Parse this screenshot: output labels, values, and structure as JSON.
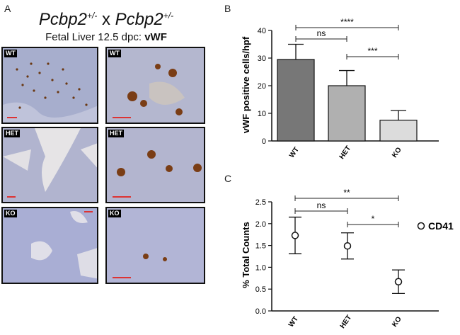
{
  "panelA": {
    "letter": "A",
    "title_gene_1": "Pcbp2",
    "title_sup_1": "+/-",
    "title_x": "x",
    "title_gene_2": "Pcbp2",
    "title_sup_2": "+/-",
    "subtitle_prefix": "Fetal Liver 12.5 dpc:",
    "subtitle_marker": "vWF",
    "rows": [
      {
        "left_tag": "WT",
        "right_tag": "WT",
        "tint": "#a7aecd",
        "stain": "#6a3812"
      },
      {
        "left_tag": "HET",
        "right_tag": "HET",
        "tint": "#b1b4cf",
        "stain": "#7a3d15"
      },
      {
        "left_tag": "KO",
        "right_tag": "KO",
        "tint": "#a9aed4",
        "stain": "#7a3d15"
      }
    ]
  },
  "panelB": {
    "letter": "B",
    "colors": [
      "#777777",
      "#b0b0b0",
      "#dcdcdc"
    ],
    "sig": [
      {
        "label": "****"
      },
      {
        "label": "ns"
      },
      {
        "label": "***"
      }
    ]
  },
  "panelC": {
    "letter": "C",
    "legend": "CD41",
    "sig": [
      {
        "label": "**"
      },
      {
        "label": "ns"
      },
      {
        "label": "*"
      }
    ]
  },
  "chart_data": [
    {
      "type": "bar",
      "categories": [
        "WT",
        "HET",
        "KO"
      ],
      "values": [
        29.5,
        20,
        7.5
      ],
      "error": [
        5.5,
        5.5,
        3.5
      ],
      "title": "",
      "xlabel": "",
      "ylabel": "vWF positive cells/hpf",
      "ylim": [
        0,
        40
      ],
      "yticks": [
        0,
        10,
        20,
        30,
        40
      ],
      "grid": false
    },
    {
      "type": "scatter",
      "categories": [
        "WT",
        "HET",
        "KO"
      ],
      "values": [
        1.73,
        1.49,
        0.67
      ],
      "error": [
        0.42,
        0.3,
        0.27
      ],
      "title": "",
      "xlabel": "",
      "ylabel": "% Total Counts",
      "ylim": [
        0,
        2.5
      ],
      "yticks": [
        0.0,
        0.5,
        1.0,
        1.5,
        2.0,
        2.5
      ],
      "legend": "CD41",
      "grid": false
    }
  ]
}
